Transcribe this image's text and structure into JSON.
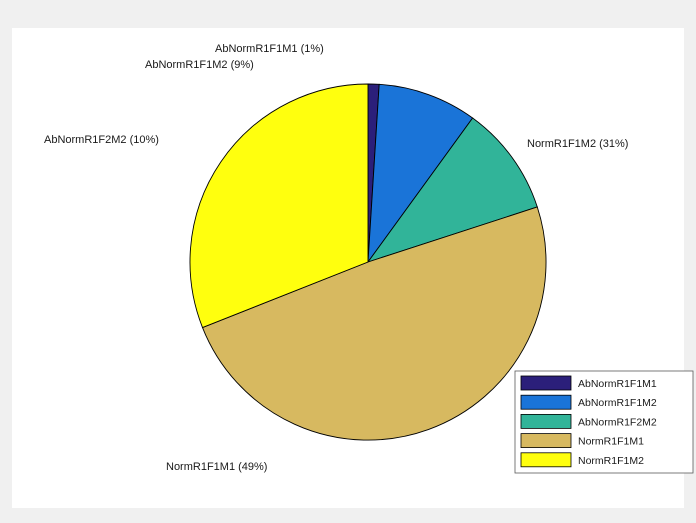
{
  "chart_data": {
    "type": "pie",
    "title": "",
    "slices": [
      {
        "label": "AbNormR1F1M1",
        "value": 1,
        "slice_label": "AbNormR1F1M1  (1%)",
        "color": "#2b1f7a"
      },
      {
        "label": "AbNormR1F1M2",
        "value": 9,
        "slice_label": "AbNormR1F1M2  (9%)",
        "color": "#1a74d8"
      },
      {
        "label": "AbNormR1F2M2",
        "value": 10,
        "slice_label": "AbNormR1F2M2 (10%)",
        "color": "#31b499"
      },
      {
        "label": "NormR1F1M1",
        "value": 49,
        "slice_label": "NormR1F1M1 (49%)",
        "color": "#d7b960"
      },
      {
        "label": "NormR1F1M2",
        "value": 31,
        "slice_label": "NormR1F1M2 (31%)",
        "color": "#ffff0e"
      }
    ],
    "legend": {
      "position": "bottom-right",
      "entries": [
        "AbNormR1F1M1",
        "AbNormR1F1M2",
        "AbNormR1F2M2",
        "NormR1F1M1",
        "NormR1F1M2"
      ]
    }
  },
  "colors": {
    "figure_background": "#f0f0f0",
    "axes_background": "#ffffff",
    "edge": "#000000"
  }
}
